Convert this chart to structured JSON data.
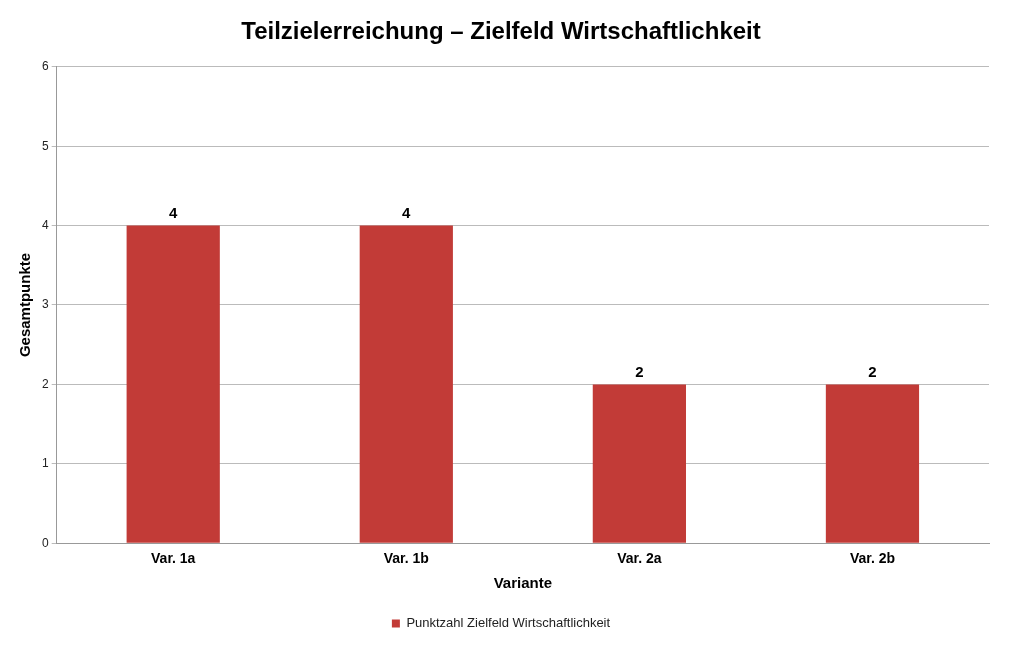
{
  "chart_data": {
    "type": "bar",
    "title": "Teilzielerreichung – Zielfeld Wirtschaftlichkeit",
    "xlabel": "Variante",
    "ylabel": "Gesamtpunkte",
    "categories": [
      "Var. 1a",
      "Var. 1b",
      "Var. 2a",
      "Var. 2b"
    ],
    "series": [
      {
        "name": "Punktzahl Zielfeld Wirtschaftlichkeit",
        "color": "#c23b37",
        "values": [
          4,
          4,
          2,
          2
        ]
      }
    ],
    "ylim": [
      0,
      6
    ],
    "yticks": [
      0,
      1,
      2,
      3,
      4,
      5,
      6
    ],
    "grid": "y",
    "legend": "bottom",
    "data_labels": true
  }
}
